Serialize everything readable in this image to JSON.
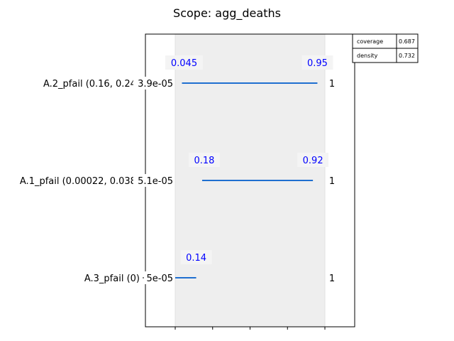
{
  "title": "Scope: agg_deaths",
  "colors": {
    "box_fill": "#eeeeee",
    "box_edge": "#e0e0e0",
    "line": "#1f6fd0",
    "quantile_text": "#0000ff",
    "label_bg": "#f4f4f4"
  },
  "stats_table": [
    {
      "name": "coverage",
      "value": "0.687"
    },
    {
      "name": "density",
      "value": "0.732"
    }
  ],
  "chart_data": {
    "type": "box-range",
    "title": "Scope: agg_deaths",
    "xlim": [
      0,
      1.2
    ],
    "box_range": [
      0,
      1
    ],
    "x_ticks": [
      0,
      0.25,
      0.5,
      0.75,
      1.0
    ],
    "rows": [
      {
        "label": "A.2_pfail (0.16, 0.24)",
        "min_label": "3.9e-05",
        "max_label": "1",
        "lo": 0.045,
        "hi": 0.95,
        "lo_text": "0.045",
        "hi_text": "0.95"
      },
      {
        "label": "A.1_pfail (0.00022, 0.038)",
        "min_label": "5.1e-05",
        "max_label": "1",
        "lo": 0.18,
        "hi": 0.92,
        "lo_text": "0.18",
        "hi_text": "0.92"
      },
      {
        "label": "A.3_pfail (0)",
        "min_label": "5e-05",
        "max_label": "1",
        "lo": 0.0,
        "hi": 0.14,
        "lo_text": null,
        "hi_text": "0.14"
      }
    ]
  }
}
